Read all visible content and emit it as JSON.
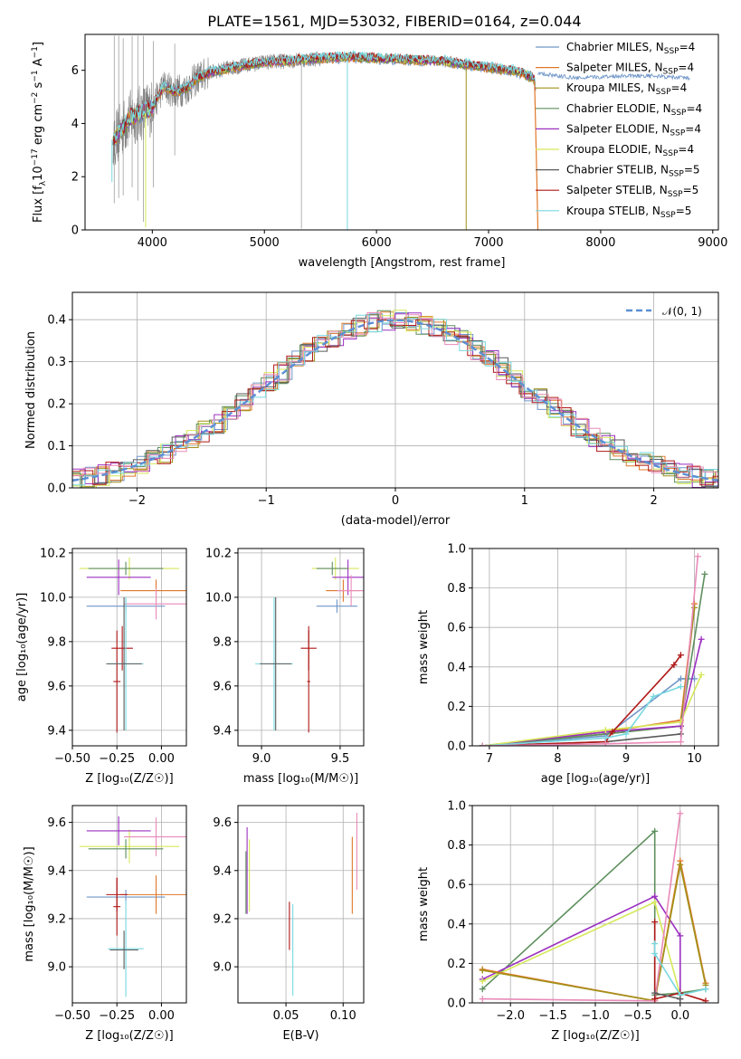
{
  "figure": {
    "title": "PLATE=1561, MJD=53032, FIBERID=0164, z=0.044"
  },
  "colors": {
    "series": [
      "#6f96c8",
      "#e0782a",
      "#a09018",
      "#5e8f5e",
      "#9b30c0",
      "#d6e85a",
      "#5a5a5a",
      "#b01818",
      "#78d8e0"
    ],
    "extra": "#e88ab8",
    "data_gray": "#808080",
    "normal_curve": "#5b8fd4"
  },
  "chart_data": [
    {
      "id": "spectrum",
      "type": "line",
      "title": "PLATE=1561, MJD=53032, FIBERID=0164, z=0.044",
      "xlabel": "wavelength [Angstrom, rest frame]",
      "ylabel": "Flux [f_λ 10^-17 erg cm^-2 s^-1 A^-1]",
      "ylabel_parts": {
        "a": "Flux [f",
        "b": "λ",
        "c": "10",
        "d": "−17",
        "e": " erg cm",
        "f": "−2",
        "g": " s",
        "h": "−1",
        "i": " A",
        "j": "−1",
        "k": "]"
      },
      "xlim": [
        3400,
        9050
      ],
      "ylim": [
        0,
        7.35
      ],
      "xticks": [
        4000,
        5000,
        6000,
        7000,
        8000,
        9000
      ],
      "xtick_labels": [
        "4000",
        "5000",
        "6000",
        "7000",
        "8000",
        "9000"
      ],
      "yticks": [
        0,
        2,
        4,
        6
      ],
      "ytick_labels": [
        "0",
        "2",
        "4",
        "6"
      ],
      "legend_position": "upper-right",
      "legend": [
        {
          "imf": "Chabrier MILES, N",
          "sub": "SSP",
          "eq": "=4"
        },
        {
          "imf": "Salpeter MILES, N",
          "sub": "SSP",
          "eq": "=4"
        },
        {
          "imf": "Kroupa MILES, N",
          "sub": "SSP",
          "eq": "=4"
        },
        {
          "imf": "Chabrier ELODIE, N",
          "sub": "SSP",
          "eq": "=4"
        },
        {
          "imf": "Salpeter ELODIE, N",
          "sub": "SSP",
          "eq": "=4"
        },
        {
          "imf": "Kroupa ELODIE, N",
          "sub": "SSP",
          "eq": "=4"
        },
        {
          "imf": "Chabrier STELIB, N",
          "sub": "SSP",
          "eq": "=5"
        },
        {
          "imf": "Salpeter STELIB, N",
          "sub": "SSP",
          "eq": "=5"
        },
        {
          "imf": "Kroupa STELIB, N",
          "sub": "SSP",
          "eq": "=5"
        }
      ],
      "continuum": {
        "x": [
          3650,
          3700,
          3800,
          3900,
          4000,
          4100,
          4200,
          4300,
          4400,
          4500,
          4700,
          5000,
          5200,
          5500,
          5800,
          6000,
          6300,
          6600,
          7000,
          7200,
          7300,
          7400,
          7420
        ],
        "y": [
          3.4,
          3.6,
          4.2,
          4.4,
          4.6,
          5.4,
          5.2,
          5.3,
          5.7,
          5.9,
          6.1,
          6.3,
          6.35,
          6.45,
          6.5,
          6.45,
          6.4,
          6.35,
          6.1,
          6.0,
          5.9,
          5.7,
          5.4
        ]
      },
      "miles_tail": {
        "x": [
          7450,
          7600,
          7800,
          8000,
          8200,
          8400,
          8600,
          8800
        ],
        "y": [
          5.9,
          5.8,
          5.7,
          5.75,
          5.8,
          5.8,
          5.75,
          5.7
        ]
      }
    },
    {
      "id": "residuals",
      "type": "histogram",
      "xlabel": "(data-model)/error",
      "ylabel": "Normed distribution",
      "xlim": [
        -2.5,
        2.5
      ],
      "ylim": [
        0,
        0.465
      ],
      "xticks": [
        -2,
        -1,
        0,
        1,
        2
      ],
      "xtick_labels": [
        "−2",
        "−1",
        "0",
        "1",
        "2"
      ],
      "yticks": [
        0,
        0.1,
        0.2,
        0.3,
        0.4
      ],
      "ytick_labels": [
        "0.0",
        "0.1",
        "0.2",
        "0.3",
        "0.4"
      ],
      "bin_width": 0.1,
      "legend": {
        "label": "𝒩(0, 1)"
      },
      "legend_position": "upper-right"
    },
    {
      "id": "age-vs-Z",
      "type": "errorbar",
      "xlabel": "Z [log₁₀(Z/Z☉)]",
      "ylabel": "age  [log₁₀(age/yr)]",
      "xlim": [
        -0.5,
        0.14
      ],
      "ylim": [
        9.33,
        10.22
      ],
      "xticks": [
        -0.5,
        -0.25,
        0.0
      ],
      "xtick_labels": [
        "−0.50",
        "−0.25",
        "0.00"
      ],
      "yticks": [
        9.4,
        9.6,
        9.8,
        10.0,
        10.2
      ],
      "ytick_labels": [
        "9.4",
        "9.6",
        "9.8",
        "10.0",
        "10.2"
      ],
      "points": [
        {
          "x": -0.2,
          "y": 9.96,
          "xerr": 0.22,
          "yerr": 0.03,
          "c": 0
        },
        {
          "x": -0.03,
          "y": 10.03,
          "xerr": 0.2,
          "yerr": 0.05,
          "c": 1
        },
        {
          "x": -0.18,
          "y": 10.13,
          "xerr": 0.28,
          "yerr": 0.05,
          "c": 5
        },
        {
          "x": -0.24,
          "y": 10.09,
          "xerr": 0.18,
          "yerr": 0.08,
          "c": 4
        },
        {
          "x": -0.03,
          "y": 9.97,
          "xerr": 0.18,
          "yerr": 0.07,
          "c": 9
        },
        {
          "x": -0.2,
          "y": 10.13,
          "xerr": 0.21,
          "yerr": 0.03,
          "c": 3
        },
        {
          "x": -0.22,
          "y": 9.77,
          "xerr": 0.06,
          "yerr": 0.1,
          "c": 7
        },
        {
          "x": -0.25,
          "y": 9.62,
          "xerr": 0.02,
          "yerr": 0.23,
          "c": 7
        },
        {
          "x": -0.2,
          "y": 9.7,
          "xerr": 0.1,
          "yerr": 0.3,
          "c": 8
        },
        {
          "x": -0.21,
          "y": 9.7,
          "xerr": 0.1,
          "yerr": 0.3,
          "c": 6
        }
      ]
    },
    {
      "id": "age-vs-mass",
      "type": "errorbar",
      "xlabel": "mass [log₁₀(M/M☉)]",
      "ylabel": "",
      "xlim": [
        8.85,
        9.65
      ],
      "ylim": [
        9.33,
        10.22
      ],
      "xticks": [
        9.0,
        9.5
      ],
      "xtick_labels": [
        "9.0",
        "9.5"
      ],
      "yticks": [
        9.4,
        9.6,
        9.8,
        10.0,
        10.2
      ],
      "ytick_labels": [
        "9.4",
        "9.6",
        "9.8",
        "10.0",
        "10.2"
      ],
      "points": [
        {
          "x": 9.48,
          "y": 9.96,
          "xerr": 0.13,
          "yerr": 0.03,
          "c": 0
        },
        {
          "x": 9.52,
          "y": 10.03,
          "xerr": 0.11,
          "yerr": 0.05,
          "c": 1
        },
        {
          "x": 9.47,
          "y": 10.13,
          "xerr": 0.15,
          "yerr": 0.05,
          "c": 5
        },
        {
          "x": 9.55,
          "y": 10.09,
          "xerr": 0.1,
          "yerr": 0.08,
          "c": 4
        },
        {
          "x": 9.57,
          "y": 10.03,
          "xerr": 0.09,
          "yerr": 0.07,
          "c": 9
        },
        {
          "x": 9.45,
          "y": 10.13,
          "xerr": 0.1,
          "yerr": 0.03,
          "c": 3
        },
        {
          "x": 9.3,
          "y": 9.77,
          "xerr": 0.05,
          "yerr": 0.1,
          "c": 7
        },
        {
          "x": 9.3,
          "y": 9.62,
          "xerr": 0.01,
          "yerr": 0.23,
          "c": 7
        },
        {
          "x": 9.08,
          "y": 9.7,
          "xerr": 0.12,
          "yerr": 0.3,
          "c": 8
        },
        {
          "x": 9.09,
          "y": 9.7,
          "xerr": 0.1,
          "yerr": 0.3,
          "c": 6
        }
      ]
    },
    {
      "id": "massweight-vs-age",
      "type": "line",
      "xlabel": "age  [log₁₀(age/yr)]",
      "ylabel": "mass weight",
      "xlim": [
        6.75,
        10.35
      ],
      "ylim": [
        0,
        1.0
      ],
      "xticks": [
        7,
        8,
        9,
        10
      ],
      "xtick_labels": [
        "7",
        "8",
        "9",
        "10"
      ],
      "yticks": [
        0,
        0.2,
        0.4,
        0.6,
        0.8,
        1.0
      ],
      "ytick_labels": [
        "0.0",
        "0.2",
        "0.4",
        "0.6",
        "0.8",
        "1.0"
      ],
      "series": [
        {
          "c": 0,
          "x": [
            6.9,
            8.7,
            9.8,
            10.0
          ],
          "y": [
            0.0,
            0.05,
            0.34,
            0.34
          ]
        },
        {
          "c": 1,
          "x": [
            6.9,
            8.7,
            9.8,
            10.0
          ],
          "y": [
            0.0,
            0.07,
            0.13,
            0.72
          ]
        },
        {
          "c": 2,
          "x": [
            6.9,
            8.7,
            9.8,
            10.0
          ],
          "y": [
            0.0,
            0.06,
            0.1,
            0.7
          ]
        },
        {
          "c": 3,
          "x": [
            6.9,
            8.7,
            9.8,
            10.15
          ],
          "y": [
            0.0,
            0.06,
            0.1,
            0.87
          ]
        },
        {
          "c": 4,
          "x": [
            6.9,
            8.7,
            9.8,
            10.1
          ],
          "y": [
            0.0,
            0.07,
            0.1,
            0.54
          ]
        },
        {
          "c": 5,
          "x": [
            6.9,
            8.7,
            9.8,
            10.1
          ],
          "y": [
            0.0,
            0.08,
            0.12,
            0.36
          ]
        },
        {
          "c": 6,
          "x": [
            6.9,
            8.7,
            9.8
          ],
          "y": [
            0.0,
            0.02,
            0.06
          ]
        },
        {
          "c": 7,
          "x": [
            6.9,
            8.7,
            8.8,
            9.7,
            9.8
          ],
          "y": [
            0.0,
            0.02,
            0.07,
            0.41,
            0.46
          ]
        },
        {
          "c": 8,
          "x": [
            6.9,
            8.7,
            9.0,
            9.4,
            9.8
          ],
          "y": [
            0.0,
            0.04,
            0.06,
            0.25,
            0.3
          ]
        },
        {
          "c": 9,
          "x": [
            6.9,
            8.7,
            9.8,
            10.05
          ],
          "y": [
            0.0,
            0.01,
            0.02,
            0.96
          ]
        }
      ]
    },
    {
      "id": "mass-vs-Z",
      "type": "errorbar",
      "xlabel": "Z [log₁₀(Z/Z☉)]",
      "ylabel": "mass [log₁₀(M/M☉)]",
      "xlim": [
        -0.5,
        0.14
      ],
      "ylim": [
        8.85,
        9.67
      ],
      "xticks": [
        -0.5,
        -0.25,
        0.0
      ],
      "xtick_labels": [
        "−0.50",
        "−0.25",
        "0.00"
      ],
      "yticks": [
        9.0,
        9.2,
        9.4,
        9.6
      ],
      "ytick_labels": [
        "9.0",
        "9.2",
        "9.4",
        "9.6"
      ],
      "points": [
        {
          "x": -0.2,
          "y": 9.29,
          "xerr": 0.22,
          "yerr": 0.03,
          "c": 0
        },
        {
          "x": -0.03,
          "y": 9.3,
          "xerr": 0.2,
          "yerr": 0.08,
          "c": 1
        },
        {
          "x": -0.18,
          "y": 9.5,
          "xerr": 0.28,
          "yerr": 0.07,
          "c": 5
        },
        {
          "x": -0.24,
          "y": 9.565,
          "xerr": 0.18,
          "yerr": 0.06,
          "c": 4
        },
        {
          "x": -0.03,
          "y": 9.54,
          "xerr": 0.18,
          "yerr": 0.08,
          "c": 9
        },
        {
          "x": -0.2,
          "y": 9.49,
          "xerr": 0.21,
          "yerr": 0.04,
          "c": 3
        },
        {
          "x": -0.25,
          "y": 9.3,
          "xerr": 0.06,
          "yerr": 0.07,
          "c": 7
        },
        {
          "x": -0.25,
          "y": 9.25,
          "xerr": 0.02,
          "yerr": 0.12,
          "c": 7
        },
        {
          "x": -0.2,
          "y": 9.075,
          "xerr": 0.1,
          "yerr": 0.2,
          "c": 8
        },
        {
          "x": -0.21,
          "y": 9.07,
          "xerr": 0.08,
          "yerr": 0.08,
          "c": 6
        }
      ]
    },
    {
      "id": "mass-vs-EBV",
      "type": "errorbar",
      "xlabel": "E(B-V)",
      "ylabel": "",
      "xlim": [
        0.008,
        0.118
      ],
      "ylim": [
        8.85,
        9.67
      ],
      "xticks": [
        0.05,
        0.1
      ],
      "xtick_labels": [
        "0.05",
        "0.10"
      ],
      "yticks": [
        9.0,
        9.2,
        9.4,
        9.6
      ],
      "ytick_labels": [
        "9.0",
        "9.2",
        "9.4",
        "9.6"
      ],
      "points": [
        {
          "x": 0.016,
          "y": 9.4,
          "xerr": 0,
          "yerr": 0.18,
          "c": 4
        },
        {
          "x": 0.018,
          "y": 9.38,
          "xerr": 0,
          "yerr": 0.15,
          "c": 5
        },
        {
          "x": 0.015,
          "y": 9.35,
          "xerr": 0,
          "yerr": 0.13,
          "c": 3
        },
        {
          "x": 0.053,
          "y": 9.17,
          "xerr": 0,
          "yerr": 0.1,
          "c": 7
        },
        {
          "x": 0.056,
          "y": 9.07,
          "xerr": 0,
          "yerr": 0.19,
          "c": 8
        },
        {
          "x": 0.108,
          "y": 9.38,
          "xerr": 0,
          "yerr": 0.16,
          "c": 1
        },
        {
          "x": 0.112,
          "y": 9.48,
          "xerr": 0,
          "yerr": 0.16,
          "c": 9
        }
      ]
    },
    {
      "id": "massweight-vs-Z",
      "type": "line",
      "xlabel": "Z [log₁₀(Z/Z☉)]",
      "ylabel": "mass weight",
      "xlim": [
        -2.45,
        0.45
      ],
      "ylim": [
        0,
        1.0
      ],
      "xticks": [
        -2.0,
        -1.5,
        -1.0,
        -0.5,
        0.0
      ],
      "xtick_labels": [
        "−2.0",
        "−1.5",
        "−1.0",
        "−0.5",
        "0.0"
      ],
      "yticks": [
        0,
        0.2,
        0.4,
        0.6,
        0.8,
        1.0
      ],
      "ytick_labels": [
        "0.0",
        "0.2",
        "0.4",
        "0.6",
        "0.8",
        "1.0"
      ],
      "series": [
        {
          "c": 3,
          "x": [
            -2.33,
            -0.3,
            -0.3,
            0.0,
            0.3
          ],
          "y": [
            0.07,
            0.87,
            0.04,
            0.05,
            0.07
          ]
        },
        {
          "c": 4,
          "x": [
            -2.33,
            -0.3,
            0.0,
            0.0
          ],
          "y": [
            0.12,
            0.54,
            0.34,
            0.02
          ]
        },
        {
          "c": 5,
          "x": [
            -2.33,
            -0.3,
            0.0
          ],
          "y": [
            0.11,
            0.51,
            0.04
          ]
        },
        {
          "c": 1,
          "x": [
            -2.33,
            -0.3,
            0.0,
            0.3
          ],
          "y": [
            0.17,
            0.01,
            0.72,
            0.1
          ]
        },
        {
          "c": 2,
          "x": [
            -2.33,
            -0.3,
            0.0,
            0.3
          ],
          "y": [
            0.165,
            0.01,
            0.7,
            0.09
          ]
        },
        {
          "c": 9,
          "x": [
            -2.33,
            -0.3,
            0.0
          ],
          "y": [
            0.02,
            0.01,
            0.96
          ]
        },
        {
          "c": 7,
          "x": [
            -0.3,
            -0.3,
            0.0,
            0.3
          ],
          "y": [
            0.41,
            0.02,
            0.05,
            0.01
          ]
        },
        {
          "c": 8,
          "x": [
            -0.3,
            -0.3,
            0.0,
            0.3
          ],
          "y": [
            0.3,
            0.25,
            0.04,
            0.07
          ]
        },
        {
          "c": 6,
          "x": [
            -0.3,
            0.0
          ],
          "y": [
            0.05,
            0.02
          ]
        }
      ]
    }
  ]
}
